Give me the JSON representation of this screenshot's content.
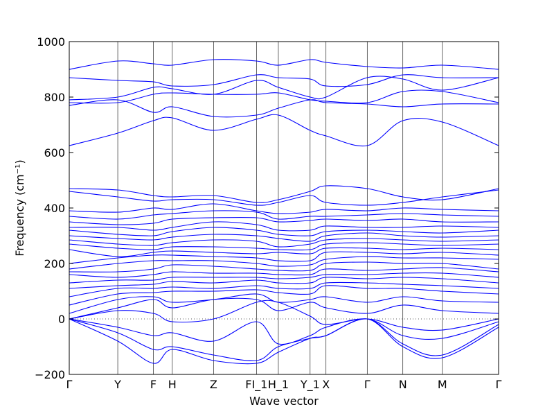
{
  "chart_data": {
    "type": "line",
    "xlabel": "Wave vector",
    "ylabel": "Frequency (cm⁻¹)",
    "ylim": [
      -200,
      1000
    ],
    "xlim": [
      0,
      100
    ],
    "grid": false,
    "y_ticks": [
      -200,
      0,
      200,
      400,
      600,
      800,
      1000
    ],
    "y_tick_labels": [
      "−200",
      "0",
      "200",
      "400",
      "600",
      "800",
      "1000"
    ],
    "high_symmetry_points": [
      {
        "label": "Γ",
        "x": 0
      },
      {
        "label": "Y",
        "x": 11.3
      },
      {
        "label": "F",
        "x": 19.6
      },
      {
        "label": "H",
        "x": 24.0
      },
      {
        "label": "Z",
        "x": 33.6
      },
      {
        "label": "FI_1",
        "x": 43.6
      },
      {
        "label": "H_1",
        "x": 48.7
      },
      {
        "label": "Y_1",
        "x": 56.1
      },
      {
        "label": "X",
        "x": 59.8
      },
      {
        "label": "Γ",
        "x": 69.4
      },
      {
        "label": "N",
        "x": 77.7
      },
      {
        "label": "M",
        "x": 86.9
      },
      {
        "label": "Γ",
        "x": 100
      }
    ],
    "series": [
      {
        "x": [
          0,
          11.3,
          19.6,
          24,
          33.6,
          43.6,
          48.7,
          56.1,
          59.8,
          69.4,
          77.7,
          86.9,
          100
        ],
        "values": [
          900,
          930,
          920,
          915,
          935,
          930,
          915,
          935,
          925,
          910,
          905,
          915,
          900
        ]
      },
      {
        "x": [
          0,
          11.3,
          19.6,
          24,
          33.6,
          43.6,
          48.7,
          56.1,
          59.8,
          69.4,
          77.7,
          86.9,
          100
        ],
        "values": [
          870,
          860,
          855,
          840,
          845,
          880,
          870,
          865,
          840,
          845,
          880,
          870,
          870
        ]
      },
      {
        "x": [
          0,
          11.3,
          19.6,
          24,
          33.6,
          43.6,
          48.7,
          56.1,
          59.8,
          69.4,
          77.7,
          86.9,
          100
        ],
        "values": [
          790,
          800,
          835,
          830,
          810,
          860,
          835,
          800,
          800,
          870,
          865,
          825,
          870
        ]
      },
      {
        "x": [
          0,
          11.3,
          19.6,
          24,
          33.6,
          43.6,
          48.7,
          56.1,
          59.8,
          69.4,
          77.7,
          86.9,
          100
        ],
        "values": [
          780,
          780,
          810,
          815,
          810,
          810,
          815,
          790,
          785,
          780,
          820,
          820,
          780
        ]
      },
      {
        "x": [
          0,
          11.3,
          19.6,
          24,
          33.6,
          43.6,
          48.7,
          56.1,
          59.8,
          69.4,
          77.7,
          86.9,
          100
        ],
        "values": [
          770,
          790,
          745,
          765,
          730,
          735,
          760,
          790,
          780,
          775,
          765,
          775,
          775
        ]
      },
      {
        "x": [
          0,
          11.3,
          19.6,
          24,
          33.6,
          43.6,
          48.7,
          56.1,
          59.8,
          69.4,
          77.7,
          86.9,
          100
        ],
        "values": [
          625,
          670,
          715,
          725,
          680,
          720,
          735,
          680,
          660,
          625,
          715,
          710,
          625
        ]
      },
      {
        "x": [
          0,
          11.3,
          19.6,
          24,
          33.6,
          43.6,
          48.7,
          56.1,
          59.8,
          69.4,
          77.7,
          86.9,
          100
        ],
        "values": [
          470,
          465,
          445,
          440,
          445,
          420,
          430,
          460,
          480,
          470,
          440,
          430,
          470
        ]
      },
      {
        "x": [
          0,
          11.3,
          19.6,
          24,
          33.6,
          43.6,
          48.7,
          56.1,
          59.8,
          69.4,
          77.7,
          86.9,
          100
        ],
        "values": [
          460,
          440,
          425,
          430,
          430,
          410,
          420,
          445,
          420,
          410,
          420,
          440,
          465
        ]
      },
      {
        "x": [
          0,
          11.3,
          19.6,
          24,
          33.6,
          43.6,
          48.7,
          56.1,
          59.8,
          69.4,
          77.7,
          86.9,
          100
        ],
        "values": [
          390,
          385,
          400,
          395,
          415,
          390,
          380,
          385,
          395,
          390,
          400,
          395,
          390
        ]
      },
      {
        "x": [
          0,
          11.3,
          19.6,
          24,
          33.6,
          43.6,
          48.7,
          56.1,
          59.8,
          69.4,
          77.7,
          86.9,
          100
        ],
        "values": [
          370,
          360,
          375,
          380,
          390,
          385,
          360,
          370,
          370,
          375,
          380,
          375,
          370
        ]
      },
      {
        "x": [
          0,
          11.3,
          19.6,
          24,
          33.6,
          43.6,
          48.7,
          56.1,
          59.8,
          69.4,
          77.7,
          86.9,
          100
        ],
        "values": [
          350,
          340,
          345,
          360,
          365,
          365,
          350,
          355,
          360,
          355,
          360,
          350,
          350
        ]
      },
      {
        "x": [
          0,
          11.3,
          19.6,
          24,
          33.6,
          43.6,
          48.7,
          56.1,
          59.8,
          69.4,
          77.7,
          86.9,
          100
        ],
        "values": [
          330,
          330,
          320,
          330,
          350,
          340,
          320,
          320,
          335,
          330,
          330,
          335,
          330
        ]
      },
      {
        "x": [
          0,
          11.3,
          19.6,
          24,
          33.6,
          43.6,
          48.7,
          56.1,
          59.8,
          69.4,
          77.7,
          86.9,
          100
        ],
        "values": [
          320,
          305,
          300,
          315,
          330,
          320,
          305,
          300,
          315,
          320,
          315,
          310,
          320
        ]
      },
      {
        "x": [
          0,
          11.3,
          19.6,
          24,
          33.6,
          43.6,
          48.7,
          56.1,
          59.8,
          69.4,
          77.7,
          86.9,
          100
        ],
        "values": [
          300,
          290,
          285,
          295,
          305,
          300,
          290,
          280,
          300,
          310,
          300,
          295,
          300
        ]
      },
      {
        "x": [
          0,
          11.3,
          19.6,
          24,
          33.6,
          43.6,
          48.7,
          56.1,
          59.8,
          69.4,
          77.7,
          86.9,
          100
        ],
        "values": [
          285,
          270,
          265,
          275,
          285,
          280,
          260,
          270,
          285,
          290,
          285,
          280,
          285
        ]
      },
      {
        "x": [
          0,
          11.3,
          19.6,
          24,
          33.6,
          43.6,
          48.7,
          56.1,
          59.8,
          69.4,
          77.7,
          86.9,
          100
        ],
        "values": [
          270,
          255,
          250,
          260,
          260,
          255,
          250,
          250,
          270,
          275,
          270,
          265,
          270
        ]
      },
      {
        "x": [
          0,
          11.3,
          19.6,
          24,
          33.6,
          43.6,
          48.7,
          56.1,
          59.8,
          69.4,
          77.7,
          86.9,
          100
        ],
        "values": [
          250,
          225,
          240,
          245,
          240,
          235,
          240,
          235,
          255,
          255,
          250,
          255,
          250
        ]
      },
      {
        "x": [
          0,
          11.3,
          19.6,
          24,
          33.6,
          43.6,
          48.7,
          56.1,
          59.8,
          69.4,
          77.7,
          86.9,
          100
        ],
        "values": [
          200,
          220,
          230,
          230,
          225,
          220,
          210,
          210,
          240,
          240,
          235,
          240,
          230
        ]
      },
      {
        "x": [
          0,
          11.3,
          19.6,
          24,
          33.6,
          43.6,
          48.7,
          56.1,
          59.8,
          69.4,
          77.7,
          86.9,
          100
        ],
        "values": [
          180,
          200,
          210,
          210,
          210,
          200,
          190,
          195,
          215,
          225,
          220,
          220,
          215
        ]
      },
      {
        "x": [
          0,
          11.3,
          19.6,
          24,
          33.6,
          43.6,
          48.7,
          56.1,
          59.8,
          69.4,
          77.7,
          86.9,
          100
        ],
        "values": [
          170,
          170,
          180,
          195,
          190,
          180,
          175,
          175,
          200,
          205,
          200,
          200,
          180
        ]
      },
      {
        "x": [
          0,
          11.3,
          19.6,
          24,
          33.6,
          43.6,
          48.7,
          56.1,
          59.8,
          69.4,
          77.7,
          86.9,
          100
        ],
        "values": [
          160,
          150,
          160,
          170,
          165,
          165,
          160,
          160,
          180,
          175,
          180,
          185,
          170
        ]
      },
      {
        "x": [
          0,
          11.3,
          19.6,
          24,
          33.6,
          43.6,
          48.7,
          56.1,
          59.8,
          69.4,
          77.7,
          86.9,
          100
        ],
        "values": [
          130,
          140,
          140,
          150,
          150,
          150,
          145,
          150,
          160,
          160,
          165,
          165,
          150
        ]
      },
      {
        "x": [
          0,
          11.3,
          19.6,
          24,
          33.6,
          43.6,
          48.7,
          56.1,
          59.8,
          69.4,
          77.7,
          86.9,
          100
        ],
        "values": [
          110,
          120,
          125,
          135,
          130,
          140,
          130,
          130,
          150,
          145,
          150,
          145,
          130
        ]
      },
      {
        "x": [
          0,
          11.3,
          19.6,
          24,
          33.6,
          43.6,
          48.7,
          56.1,
          59.8,
          69.4,
          77.7,
          86.9,
          100
        ],
        "values": [
          80,
          110,
          110,
          115,
          110,
          120,
          110,
          110,
          130,
          130,
          125,
          120,
          110
        ]
      },
      {
        "x": [
          0,
          11.3,
          19.6,
          24,
          33.6,
          43.6,
          48.7,
          56.1,
          59.8,
          69.4,
          77.7,
          86.9,
          100
        ],
        "values": [
          50,
          90,
          95,
          100,
          100,
          105,
          95,
          90,
          120,
          110,
          110,
          100,
          90
        ]
      },
      {
        "x": [
          0,
          11.3,
          19.6,
          24,
          33.6,
          43.6,
          48.7,
          56.1,
          59.8,
          69.4,
          77.7,
          86.9,
          100
        ],
        "values": [
          20,
          70,
          80,
          60,
          70,
          90,
          60,
          70,
          80,
          60,
          80,
          65,
          60
        ]
      },
      {
        "x": [
          0,
          11.3,
          19.6,
          24,
          33.6,
          43.6,
          48.7,
          56.1,
          59.8,
          69.4,
          77.7,
          86.9,
          100
        ],
        "values": [
          0,
          40,
          70,
          40,
          70,
          70,
          30,
          60,
          40,
          20,
          50,
          30,
          20
        ]
      },
      {
        "x": [
          0,
          11.3,
          19.6,
          24,
          33.6,
          43.6,
          48.7,
          56.1,
          59.8,
          69.4,
          77.7,
          86.9,
          100
        ],
        "values": [
          0,
          30,
          20,
          -10,
          0,
          60,
          60,
          10,
          -20,
          0,
          -30,
          -40,
          0
        ]
      },
      {
        "x": [
          0,
          11.3,
          19.6,
          24,
          33.6,
          43.6,
          48.7,
          56.1,
          59.8,
          69.4,
          77.7,
          86.9,
          100
        ],
        "values": [
          0,
          -30,
          -60,
          -50,
          -80,
          -10,
          -90,
          -60,
          -30,
          0,
          -60,
          -70,
          -10
        ]
      },
      {
        "x": [
          0,
          11.3,
          19.6,
          24,
          33.6,
          43.6,
          48.7,
          56.1,
          59.8,
          69.4,
          77.7,
          86.9,
          100
        ],
        "values": [
          0,
          -50,
          -110,
          -100,
          -130,
          -150,
          -100,
          -70,
          -60,
          0,
          -90,
          -130,
          -20
        ]
      },
      {
        "x": [
          0,
          11.3,
          19.6,
          24,
          33.6,
          43.6,
          48.7,
          56.1,
          59.8,
          69.4,
          77.7,
          86.9,
          100
        ],
        "values": [
          0,
          -80,
          -160,
          -110,
          -150,
          -160,
          -120,
          -70,
          -60,
          0,
          -100,
          -140,
          -30
        ]
      }
    ]
  }
}
